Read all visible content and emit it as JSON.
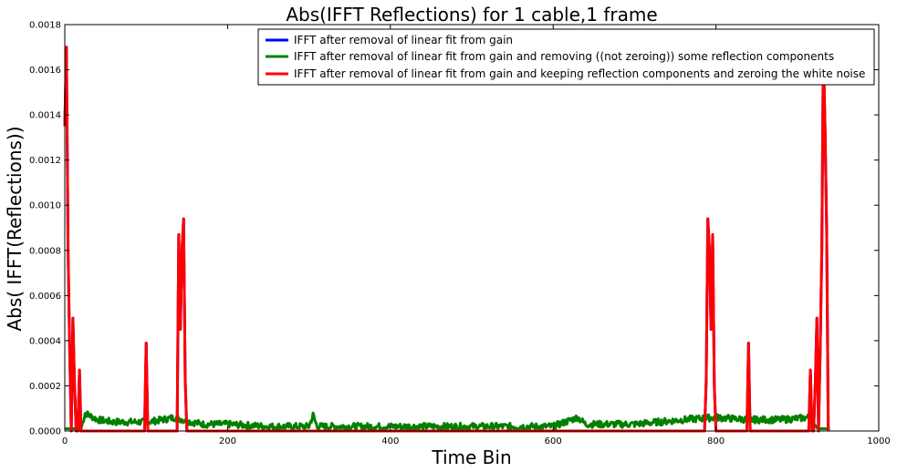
{
  "chart_data": {
    "type": "line",
    "title": "Abs(IFFT Reflections) for 1 cable,1 frame",
    "xlabel": "Time Bin",
    "ylabel": "Abs( IFFT(Reflections))",
    "xlim": [
      0,
      1000
    ],
    "ylim": [
      0,
      0.0018
    ],
    "xticks": [
      0,
      200,
      400,
      600,
      800,
      1000
    ],
    "yticks": [
      0.0,
      0.0002,
      0.0004,
      0.0006,
      0.0008,
      0.001,
      0.0012,
      0.0014,
      0.0016,
      0.0018
    ],
    "ytick_labels": [
      "0.0000",
      "0.0002",
      "0.0004",
      "0.0006",
      "0.0008",
      "0.0010",
      "0.0012",
      "0.0014",
      "0.0016",
      "0.0018"
    ],
    "grid": false,
    "legend": "top-right",
    "series": [
      {
        "name": "IFFT after removal of linear fit from gain",
        "color": "#0000ff",
        "x": [
          0,
          2,
          4,
          6,
          8,
          10,
          12,
          14,
          16,
          18,
          20,
          22,
          24,
          26,
          98,
          100,
          102,
          138,
          140,
          142,
          144,
          146,
          148,
          150,
          152,
          154,
          786,
          788,
          790,
          792,
          794,
          796,
          798,
          800,
          802,
          838,
          840,
          842,
          914,
          916,
          918,
          920,
          922,
          924,
          926,
          928,
          930,
          932,
          934,
          936,
          938
        ],
        "y": [
          0.00135,
          0.0017,
          0.0008,
          0.00035,
          0.0,
          0.0005,
          0.0002,
          0.0,
          0.0,
          0.00027,
          0.0,
          0.0,
          0.0,
          0.0,
          0.0,
          0.00039,
          0.0,
          0.0,
          0.00087,
          0.00045,
          0.0008,
          0.00094,
          0.00022,
          0.0,
          0.0,
          0.0,
          0.0,
          0.00022,
          0.00094,
          0.0008,
          0.00045,
          0.00087,
          0.0002,
          0.0,
          0.0,
          0.0,
          0.00039,
          0.0,
          0.0,
          0.00027,
          0.0,
          0.0,
          0.0002,
          0.0005,
          0.0,
          0.00035,
          0.0008,
          0.0017,
          0.00135,
          0.0009,
          0.0
        ]
      },
      {
        "name": "IFFT after removal of linear fit from gain and removing ((not zeroing)) some reflection components",
        "color": "#008000",
        "noise": true,
        "x": [
          0,
          10,
          20,
          25,
          40,
          60,
          80,
          98,
          102,
          120,
          135,
          155,
          170,
          200,
          250,
          300,
          305,
          310,
          400,
          500,
          600,
          630,
          640,
          700,
          760,
          800,
          840,
          880,
          915,
          925,
          935,
          940
        ],
        "y": [
          1e-05,
          1e-05,
          1e-05,
          8e-05,
          5e-05,
          4e-05,
          4e-05,
          4e-05,
          4e-05,
          5e-05,
          6e-05,
          4e-05,
          3e-05,
          3e-05,
          2e-05,
          2e-05,
          7e-05,
          2e-05,
          2e-05,
          2e-05,
          2e-05,
          6e-05,
          3e-05,
          3e-05,
          5e-05,
          6e-05,
          5e-05,
          5e-05,
          6e-05,
          1e-05,
          1e-05,
          1e-05
        ]
      },
      {
        "name": "IFFT after removal of linear fit from gain and keeping reflection components and zeroing the white noise",
        "color": "#ff0000",
        "x": [
          0,
          2,
          4,
          6,
          8,
          10,
          12,
          14,
          16,
          18,
          20,
          22,
          24,
          26,
          98,
          100,
          102,
          138,
          140,
          142,
          144,
          146,
          148,
          150,
          152,
          154,
          786,
          788,
          790,
          792,
          794,
          796,
          798,
          800,
          802,
          838,
          840,
          842,
          914,
          916,
          918,
          920,
          922,
          924,
          926,
          928,
          930,
          932,
          934,
          936,
          938
        ],
        "y": [
          0.00135,
          0.0017,
          0.0008,
          0.00035,
          0.0,
          0.0005,
          0.0002,
          0.0,
          0.0,
          0.00027,
          0.0,
          0.0,
          0.0,
          0.0,
          0.0,
          0.00039,
          0.0,
          0.0,
          0.00087,
          0.00045,
          0.0008,
          0.00094,
          0.00022,
          0.0,
          0.0,
          0.0,
          0.0,
          0.00022,
          0.00094,
          0.0008,
          0.00045,
          0.00087,
          0.0002,
          0.0,
          0.0,
          0.0,
          0.00039,
          0.0,
          0.0,
          0.00027,
          0.0,
          0.0,
          0.0002,
          0.0005,
          0.0,
          0.00035,
          0.0008,
          0.0017,
          0.00135,
          0.0009,
          0.0
        ]
      }
    ]
  }
}
